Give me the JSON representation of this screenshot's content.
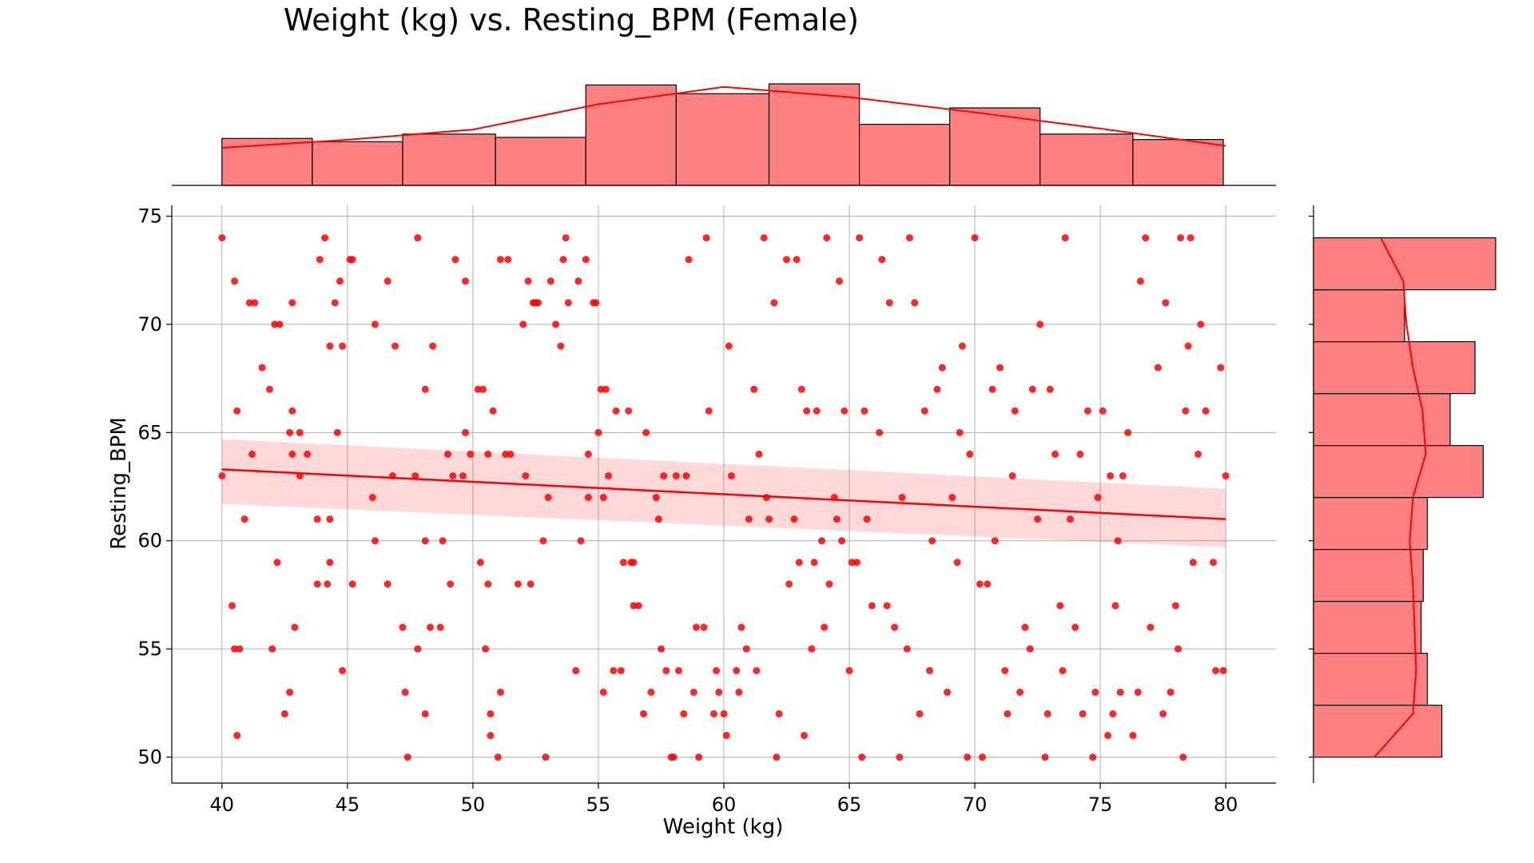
{
  "chart_data": {
    "type": "scatter",
    "title": "Weight (kg) vs. Resting_BPM (Female)",
    "xlabel": "Weight (kg)",
    "ylabel": "Resting_BPM",
    "xlim": [
      38,
      82
    ],
    "ylim": [
      48.8,
      75.5
    ],
    "xticks": [
      40,
      45,
      50,
      55,
      60,
      65,
      70,
      75,
      80
    ],
    "yticks": [
      50,
      55,
      60,
      65,
      70,
      75
    ],
    "grid": true,
    "color": "#ff0000",
    "histogram_color": "#ff8080",
    "regression": {
      "x": [
        40,
        80
      ],
      "y": [
        63.3,
        61.0
      ],
      "ci_low": [
        61.7,
        59.7
      ],
      "ci_high": [
        64.7,
        62.4
      ]
    },
    "x_marginal_histogram": {
      "bin_edges": [
        40.0,
        43.6,
        47.2,
        50.9,
        54.5,
        58.1,
        61.8,
        65.4,
        69.0,
        72.6,
        76.3,
        79.9
      ],
      "counts": [
        43,
        40,
        47,
        44,
        92,
        84,
        93,
        56,
        71,
        47,
        42
      ]
    },
    "x_marginal_kde": {
      "x": [
        40,
        45,
        50,
        55,
        60,
        65,
        70,
        75,
        80
      ],
      "density": [
        0.37,
        0.45,
        0.55,
        0.8,
        0.97,
        0.87,
        0.72,
        0.56,
        0.39
      ]
    },
    "y_marginal_histogram": {
      "bin_edges": [
        50.0,
        52.4,
        54.8,
        57.2,
        59.6,
        62.0,
        64.4,
        66.8,
        69.2,
        71.6,
        74.0
      ],
      "counts": [
        62,
        55,
        52,
        53,
        55,
        82,
        66,
        78,
        44,
        88
      ]
    },
    "y_marginal_kde": {
      "y": [
        50,
        52,
        54,
        56,
        58,
        60,
        62,
        64,
        66,
        68,
        70,
        72,
        74
      ],
      "density": [
        0.38,
        0.62,
        0.64,
        0.63,
        0.62,
        0.6,
        0.62,
        0.7,
        0.68,
        0.62,
        0.58,
        0.56,
        0.42
      ]
    },
    "points": [
      [
        40.0,
        74
      ],
      [
        40.0,
        63
      ],
      [
        40.4,
        57
      ],
      [
        40.5,
        55
      ],
      [
        40.6,
        51
      ],
      [
        40.6,
        66
      ],
      [
        40.7,
        55
      ],
      [
        40.5,
        72
      ],
      [
        40.9,
        61
      ],
      [
        41.1,
        71
      ],
      [
        41.2,
        64
      ],
      [
        41.3,
        71
      ],
      [
        41.6,
        68
      ],
      [
        41.9,
        67
      ],
      [
        42.0,
        55
      ],
      [
        42.1,
        70
      ],
      [
        42.2,
        59
      ],
      [
        42.3,
        70
      ],
      [
        42.5,
        52
      ],
      [
        42.7,
        53
      ],
      [
        42.7,
        65
      ],
      [
        42.8,
        66
      ],
      [
        42.8,
        64
      ],
      [
        42.8,
        71
      ],
      [
        42.9,
        56
      ],
      [
        43.1,
        65
      ],
      [
        43.1,
        63
      ],
      [
        43.4,
        64
      ],
      [
        43.8,
        58
      ],
      [
        43.8,
        61
      ],
      [
        43.9,
        73
      ],
      [
        44.1,
        74
      ],
      [
        44.2,
        58
      ],
      [
        44.3,
        69
      ],
      [
        44.3,
        59
      ],
      [
        44.3,
        61
      ],
      [
        44.5,
        71
      ],
      [
        44.6,
        65
      ],
      [
        44.7,
        72
      ],
      [
        44.8,
        69
      ],
      [
        44.8,
        54
      ],
      [
        45.1,
        73
      ],
      [
        45.2,
        58
      ],
      [
        45.2,
        73
      ],
      [
        46.0,
        62
      ],
      [
        46.1,
        60
      ],
      [
        46.1,
        70
      ],
      [
        46.6,
        72
      ],
      [
        46.6,
        58
      ],
      [
        46.8,
        63
      ],
      [
        46.9,
        69
      ],
      [
        47.2,
        56
      ],
      [
        47.3,
        53
      ],
      [
        47.4,
        50
      ],
      [
        47.7,
        63
      ],
      [
        47.8,
        74
      ],
      [
        47.8,
        55
      ],
      [
        48.1,
        52
      ],
      [
        48.1,
        67
      ],
      [
        48.1,
        60
      ],
      [
        48.3,
        56
      ],
      [
        48.4,
        69
      ],
      [
        48.7,
        56
      ],
      [
        48.8,
        60
      ],
      [
        49.0,
        64
      ],
      [
        49.1,
        58
      ],
      [
        49.2,
        63
      ],
      [
        49.3,
        73
      ],
      [
        49.6,
        63
      ],
      [
        49.7,
        65
      ],
      [
        49.7,
        72
      ],
      [
        49.9,
        64
      ],
      [
        50.2,
        67
      ],
      [
        50.3,
        59
      ],
      [
        50.4,
        67
      ],
      [
        50.5,
        55
      ],
      [
        50.6,
        64
      ],
      [
        50.6,
        58
      ],
      [
        50.7,
        51
      ],
      [
        50.7,
        52
      ],
      [
        50.8,
        66
      ],
      [
        51.0,
        50
      ],
      [
        51.1,
        53
      ],
      [
        51.1,
        73
      ],
      [
        51.3,
        64
      ],
      [
        51.4,
        73
      ],
      [
        51.5,
        64
      ],
      [
        51.8,
        58
      ],
      [
        52.0,
        70
      ],
      [
        52.1,
        63
      ],
      [
        52.2,
        72
      ],
      [
        52.3,
        58
      ],
      [
        52.4,
        71
      ],
      [
        52.5,
        71
      ],
      [
        52.6,
        71
      ],
      [
        52.8,
        60
      ],
      [
        52.9,
        50
      ],
      [
        53.0,
        62
      ],
      [
        53.1,
        72
      ],
      [
        53.3,
        70
      ],
      [
        53.5,
        69
      ],
      [
        53.6,
        73
      ],
      [
        53.7,
        74
      ],
      [
        53.8,
        71
      ],
      [
        54.1,
        54
      ],
      [
        54.2,
        72
      ],
      [
        54.3,
        60
      ],
      [
        54.5,
        73
      ],
      [
        54.6,
        62
      ],
      [
        54.6,
        64
      ],
      [
        54.8,
        71
      ],
      [
        54.9,
        71
      ],
      [
        55.0,
        65
      ],
      [
        55.1,
        67
      ],
      [
        55.2,
        62
      ],
      [
        55.2,
        53
      ],
      [
        55.3,
        67
      ],
      [
        55.4,
        63
      ],
      [
        55.6,
        54
      ],
      [
        55.7,
        66
      ],
      [
        55.9,
        54
      ],
      [
        56.0,
        59
      ],
      [
        56.2,
        66
      ],
      [
        56.3,
        59
      ],
      [
        56.4,
        59
      ],
      [
        56.4,
        57
      ],
      [
        56.6,
        57
      ],
      [
        56.8,
        52
      ],
      [
        56.9,
        65
      ],
      [
        57.1,
        53
      ],
      [
        57.3,
        62
      ],
      [
        57.4,
        61
      ],
      [
        57.5,
        55
      ],
      [
        57.6,
        63
      ],
      [
        57.7,
        54
      ],
      [
        57.9,
        50
      ],
      [
        58.0,
        50
      ],
      [
        58.1,
        63
      ],
      [
        58.2,
        54
      ],
      [
        58.4,
        52
      ],
      [
        58.5,
        63
      ],
      [
        58.6,
        73
      ],
      [
        58.8,
        53
      ],
      [
        58.9,
        56
      ],
      [
        59.0,
        50
      ],
      [
        59.2,
        56
      ],
      [
        59.3,
        74
      ],
      [
        59.4,
        66
      ],
      [
        59.6,
        52
      ],
      [
        59.7,
        54
      ],
      [
        59.8,
        53
      ],
      [
        60.0,
        52
      ],
      [
        60.1,
        51
      ],
      [
        60.2,
        69
      ],
      [
        60.3,
        63
      ],
      [
        60.5,
        54
      ],
      [
        60.6,
        53
      ],
      [
        60.7,
        56
      ],
      [
        60.9,
        55
      ],
      [
        61.0,
        61
      ],
      [
        61.2,
        67
      ],
      [
        61.3,
        54
      ],
      [
        61.4,
        64
      ],
      [
        61.6,
        74
      ],
      [
        61.7,
        62
      ],
      [
        61.8,
        61
      ],
      [
        62.0,
        71
      ],
      [
        62.1,
        50
      ],
      [
        62.2,
        52
      ],
      [
        62.5,
        73
      ],
      [
        62.6,
        58
      ],
      [
        62.8,
        61
      ],
      [
        62.9,
        73
      ],
      [
        63.0,
        59
      ],
      [
        63.1,
        67
      ],
      [
        63.2,
        51
      ],
      [
        63.3,
        66
      ],
      [
        63.5,
        55
      ],
      [
        63.6,
        59
      ],
      [
        63.7,
        66
      ],
      [
        63.9,
        60
      ],
      [
        64.0,
        56
      ],
      [
        64.1,
        74
      ],
      [
        64.2,
        58
      ],
      [
        64.4,
        62
      ],
      [
        64.5,
        61
      ],
      [
        64.6,
        72
      ],
      [
        64.7,
        60
      ],
      [
        64.8,
        66
      ],
      [
        65.0,
        54
      ],
      [
        65.1,
        59
      ],
      [
        65.3,
        59
      ],
      [
        65.4,
        74
      ],
      [
        65.5,
        50
      ],
      [
        65.6,
        66
      ],
      [
        65.7,
        61
      ],
      [
        65.9,
        57
      ],
      [
        66.2,
        65
      ],
      [
        66.3,
        73
      ],
      [
        66.5,
        57
      ],
      [
        66.6,
        71
      ],
      [
        66.8,
        56
      ],
      [
        67.0,
        50
      ],
      [
        67.1,
        62
      ],
      [
        67.3,
        55
      ],
      [
        67.4,
        74
      ],
      [
        67.6,
        71
      ],
      [
        67.8,
        52
      ],
      [
        68.0,
        66
      ],
      [
        68.2,
        54
      ],
      [
        68.3,
        60
      ],
      [
        68.5,
        67
      ],
      [
        68.7,
        68
      ],
      [
        68.9,
        53
      ],
      [
        69.1,
        62
      ],
      [
        69.3,
        59
      ],
      [
        69.4,
        65
      ],
      [
        69.5,
        69
      ],
      [
        69.7,
        50
      ],
      [
        69.8,
        64
      ],
      [
        70.0,
        74
      ],
      [
        70.2,
        58
      ],
      [
        70.3,
        50
      ],
      [
        70.5,
        58
      ],
      [
        70.7,
        67
      ],
      [
        70.8,
        60
      ],
      [
        71.0,
        68
      ],
      [
        71.2,
        54
      ],
      [
        71.3,
        52
      ],
      [
        71.5,
        63
      ],
      [
        71.6,
        66
      ],
      [
        71.8,
        53
      ],
      [
        72.0,
        56
      ],
      [
        72.2,
        55
      ],
      [
        72.3,
        67
      ],
      [
        72.5,
        61
      ],
      [
        72.6,
        70
      ],
      [
        72.8,
        50
      ],
      [
        72.9,
        52
      ],
      [
        73.0,
        67
      ],
      [
        73.2,
        64
      ],
      [
        73.4,
        57
      ],
      [
        73.5,
        54
      ],
      [
        73.6,
        74
      ],
      [
        73.8,
        61
      ],
      [
        74.0,
        56
      ],
      [
        74.2,
        64
      ],
      [
        74.3,
        52
      ],
      [
        74.5,
        66
      ],
      [
        74.7,
        50
      ],
      [
        74.8,
        53
      ],
      [
        74.9,
        62
      ],
      [
        75.1,
        66
      ],
      [
        75.3,
        51
      ],
      [
        75.4,
        63
      ],
      [
        75.5,
        52
      ],
      [
        75.6,
        57
      ],
      [
        75.7,
        60
      ],
      [
        75.8,
        53
      ],
      [
        75.9,
        63
      ],
      [
        76.1,
        65
      ],
      [
        76.3,
        51
      ],
      [
        76.5,
        53
      ],
      [
        76.6,
        72
      ],
      [
        76.8,
        74
      ],
      [
        77.0,
        56
      ],
      [
        77.3,
        68
      ],
      [
        77.5,
        52
      ],
      [
        77.6,
        71
      ],
      [
        77.8,
        53
      ],
      [
        78.0,
        57
      ],
      [
        78.1,
        55
      ],
      [
        78.2,
        74
      ],
      [
        78.3,
        50
      ],
      [
        78.4,
        66
      ],
      [
        78.5,
        69
      ],
      [
        78.6,
        74
      ],
      [
        78.7,
        59
      ],
      [
        78.9,
        64
      ],
      [
        79.0,
        70
      ],
      [
        79.2,
        66
      ],
      [
        79.5,
        59
      ],
      [
        79.6,
        54
      ],
      [
        79.8,
        68
      ],
      [
        79.9,
        54
      ],
      [
        80.0,
        63
      ]
    ]
  }
}
